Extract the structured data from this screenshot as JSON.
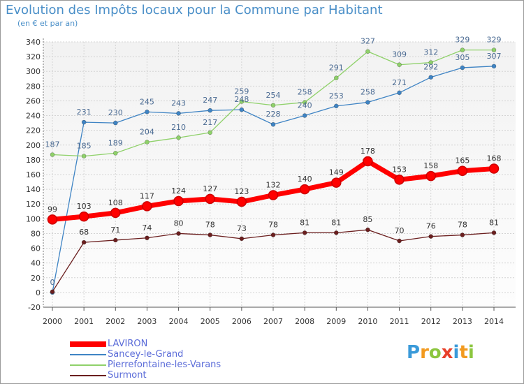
{
  "title": "Evolution des Impôts locaux pour la Commune par Habitant",
  "subtitle": "(en € et par an)",
  "logo": {
    "letters": [
      "P",
      "r",
      "o",
      "x",
      "i",
      "t",
      "i"
    ],
    "colors": [
      "#3a9ad9",
      "#f29a1f",
      "#8cc63f",
      "#e8402a",
      "#3a9ad9",
      "#f29a1f",
      "#8cc63f"
    ]
  },
  "chart_data": {
    "type": "line",
    "x": [
      "2000",
      "2001",
      "2002",
      "2003",
      "2004",
      "2005",
      "2006",
      "2007",
      "2008",
      "2009",
      "2010",
      "2011",
      "2012",
      "2013",
      "2014"
    ],
    "ylim": [
      -20,
      340
    ],
    "yticks": [
      -20,
      0,
      20,
      40,
      60,
      80,
      100,
      120,
      140,
      160,
      180,
      200,
      220,
      240,
      260,
      280,
      300,
      320,
      340
    ],
    "grid": true,
    "legend_position": "bottom-left",
    "series": [
      {
        "name": "Sancey-le-Grand",
        "color": "#3f84c4",
        "values": [
          0,
          231,
          230,
          245,
          243,
          247,
          248,
          228,
          240,
          253,
          258,
          271,
          292,
          305,
          307
        ],
        "labels": [
          "0",
          "231",
          "230",
          "245",
          "243",
          "247",
          "248",
          "228",
          "240",
          "253",
          "258",
          "271",
          "292",
          "305",
          "307"
        ]
      },
      {
        "name": "Pierrefontaine-les-Varans",
        "color": "#8fd16a",
        "values": [
          187,
          185,
          189,
          204,
          210,
          217,
          259,
          254,
          258,
          291,
          327,
          309,
          312,
          329,
          329
        ],
        "labels": [
          "187",
          "185",
          "189",
          "204",
          "210",
          "217",
          "259",
          "254",
          "258",
          "291",
          "327",
          "309",
          "312",
          "329",
          "329"
        ]
      },
      {
        "name": "Surmont",
        "color": "#6b1f1f",
        "values": [
          1,
          68,
          71,
          74,
          80,
          78,
          73,
          78,
          81,
          81,
          85,
          70,
          76,
          78,
          81
        ],
        "labels": [
          "",
          "68",
          "71",
          "74",
          "80",
          "78",
          "73",
          "78",
          "81",
          "81",
          "85",
          "70",
          "76",
          "78",
          "81"
        ]
      },
      {
        "name": "LAVIRON",
        "color": "#ff0000",
        "values": [
          99,
          103,
          108,
          117,
          124,
          127,
          123,
          132,
          140,
          149,
          178,
          153,
          158,
          165,
          168
        ],
        "labels": [
          "99",
          "103",
          "108",
          "117",
          "124",
          "127",
          "123",
          "132",
          "140",
          "149",
          "178",
          "153",
          "158",
          "165",
          "168"
        ]
      }
    ]
  }
}
